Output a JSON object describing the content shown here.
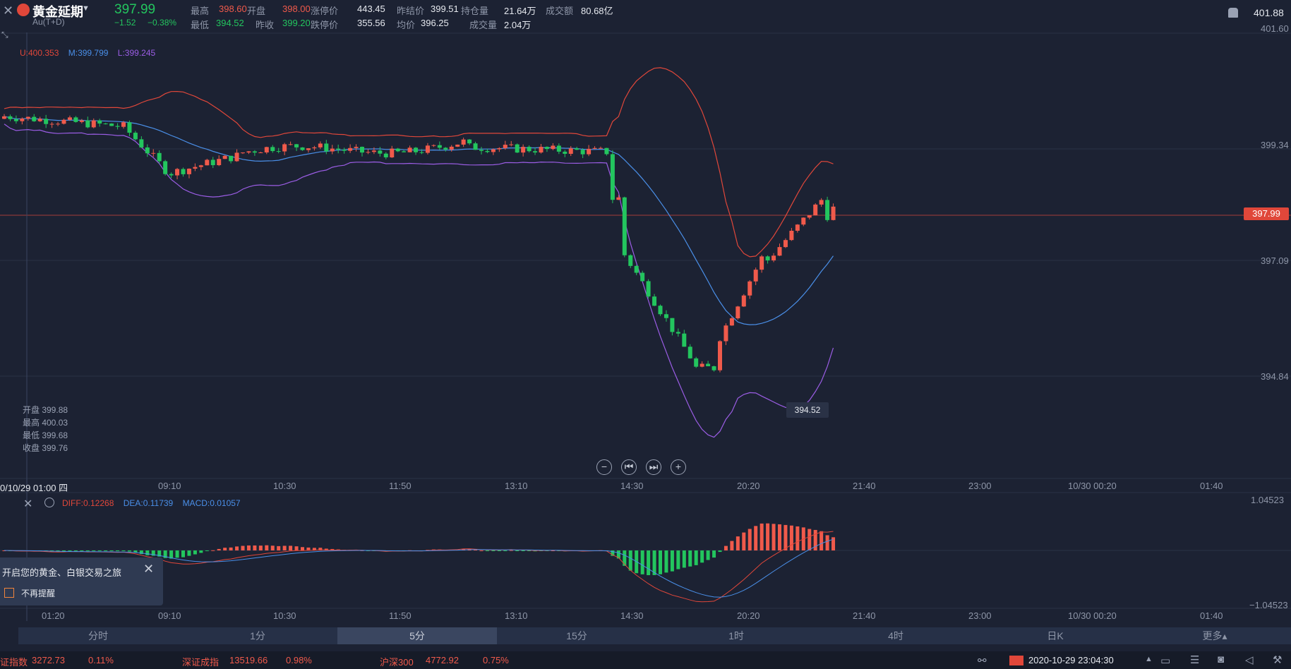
{
  "header": {
    "title": "黄金延期",
    "subtitle": "Au(T+D)",
    "price": "397.99",
    "change": "−1.52",
    "change_pct": "−0.38%",
    "stats": [
      {
        "label": "最高",
        "value": "398.60"
      },
      {
        "label": "开盘",
        "value": "398.00"
      },
      {
        "label": "涨停价",
        "value": "443.45"
      },
      {
        "label": "昨结价",
        "value": "399.51"
      },
      {
        "label": "持仓量",
        "value": "21.64万"
      },
      {
        "label": "成交额",
        "value": "80.68亿"
      },
      {
        "label": "最低",
        "value": "394.52"
      },
      {
        "label": "昨收",
        "value": "399.20"
      },
      {
        "label": "跌停价",
        "value": "355.56"
      },
      {
        "label": "均价",
        "value": "396.25"
      },
      {
        "label": "成交量",
        "value": "2.04万"
      }
    ],
    "right_price": "401.88"
  },
  "boll": {
    "u": "U:400.353",
    "m": "M:399.799",
    "l": "L:399.245"
  },
  "ohlc": {
    "open": "开盘 399.88",
    "high": "最高 400.03",
    "low": "最低 399.68",
    "close": "收盘 399.76"
  },
  "y_axis": [
    "401.60",
    "399.34",
    "397.09",
    "394.84"
  ],
  "current_price_tag": "397.99",
  "low_marker": "394.52",
  "x_axis": {
    "crosshair_label": "0/10/29 01:00 四",
    "ticks": [
      "09:10",
      "10:30",
      "11:50",
      "13:10",
      "14:30",
      "20:20",
      "21:40",
      "23:00",
      "10/30 00:20",
      "01:40"
    ],
    "macd_ticks": [
      "01:20",
      "09:10",
      "10:30",
      "11:50",
      "13:10",
      "14:30",
      "20:20",
      "21:40",
      "23:00",
      "10/30 00:20",
      "01:40"
    ]
  },
  "macd": {
    "diff": "DIFF:0.12268",
    "dea": "DEA:0.11739",
    "macd": "MACD:0.01057",
    "top": "1.04523",
    "bottom": "−1.04523"
  },
  "popup": {
    "title": "开启您的黄金、白银交易之旅",
    "checkbox": "不再提醒"
  },
  "timeframes": [
    "分时",
    "1分",
    "5分",
    "15分",
    "1时",
    "4时",
    "日K",
    "更多▴"
  ],
  "active_timeframe": "5分",
  "ticker": [
    {
      "name": "证指数",
      "value": "3272.73",
      "pct": "0.11%"
    },
    {
      "name": "深证成指",
      "value": "13519.66",
      "pct": "0.98%"
    },
    {
      "name": "沪深300",
      "value": "4772.92",
      "pct": "0.75%"
    }
  ],
  "datetime": "2020-10-29 23:04:30",
  "colors": {
    "up": "#f05a4b",
    "down": "#23c55e",
    "upper": "#e0473a",
    "mid": "#4a8fe8",
    "lower": "#9b5de5",
    "bg": "#1c2233"
  }
}
